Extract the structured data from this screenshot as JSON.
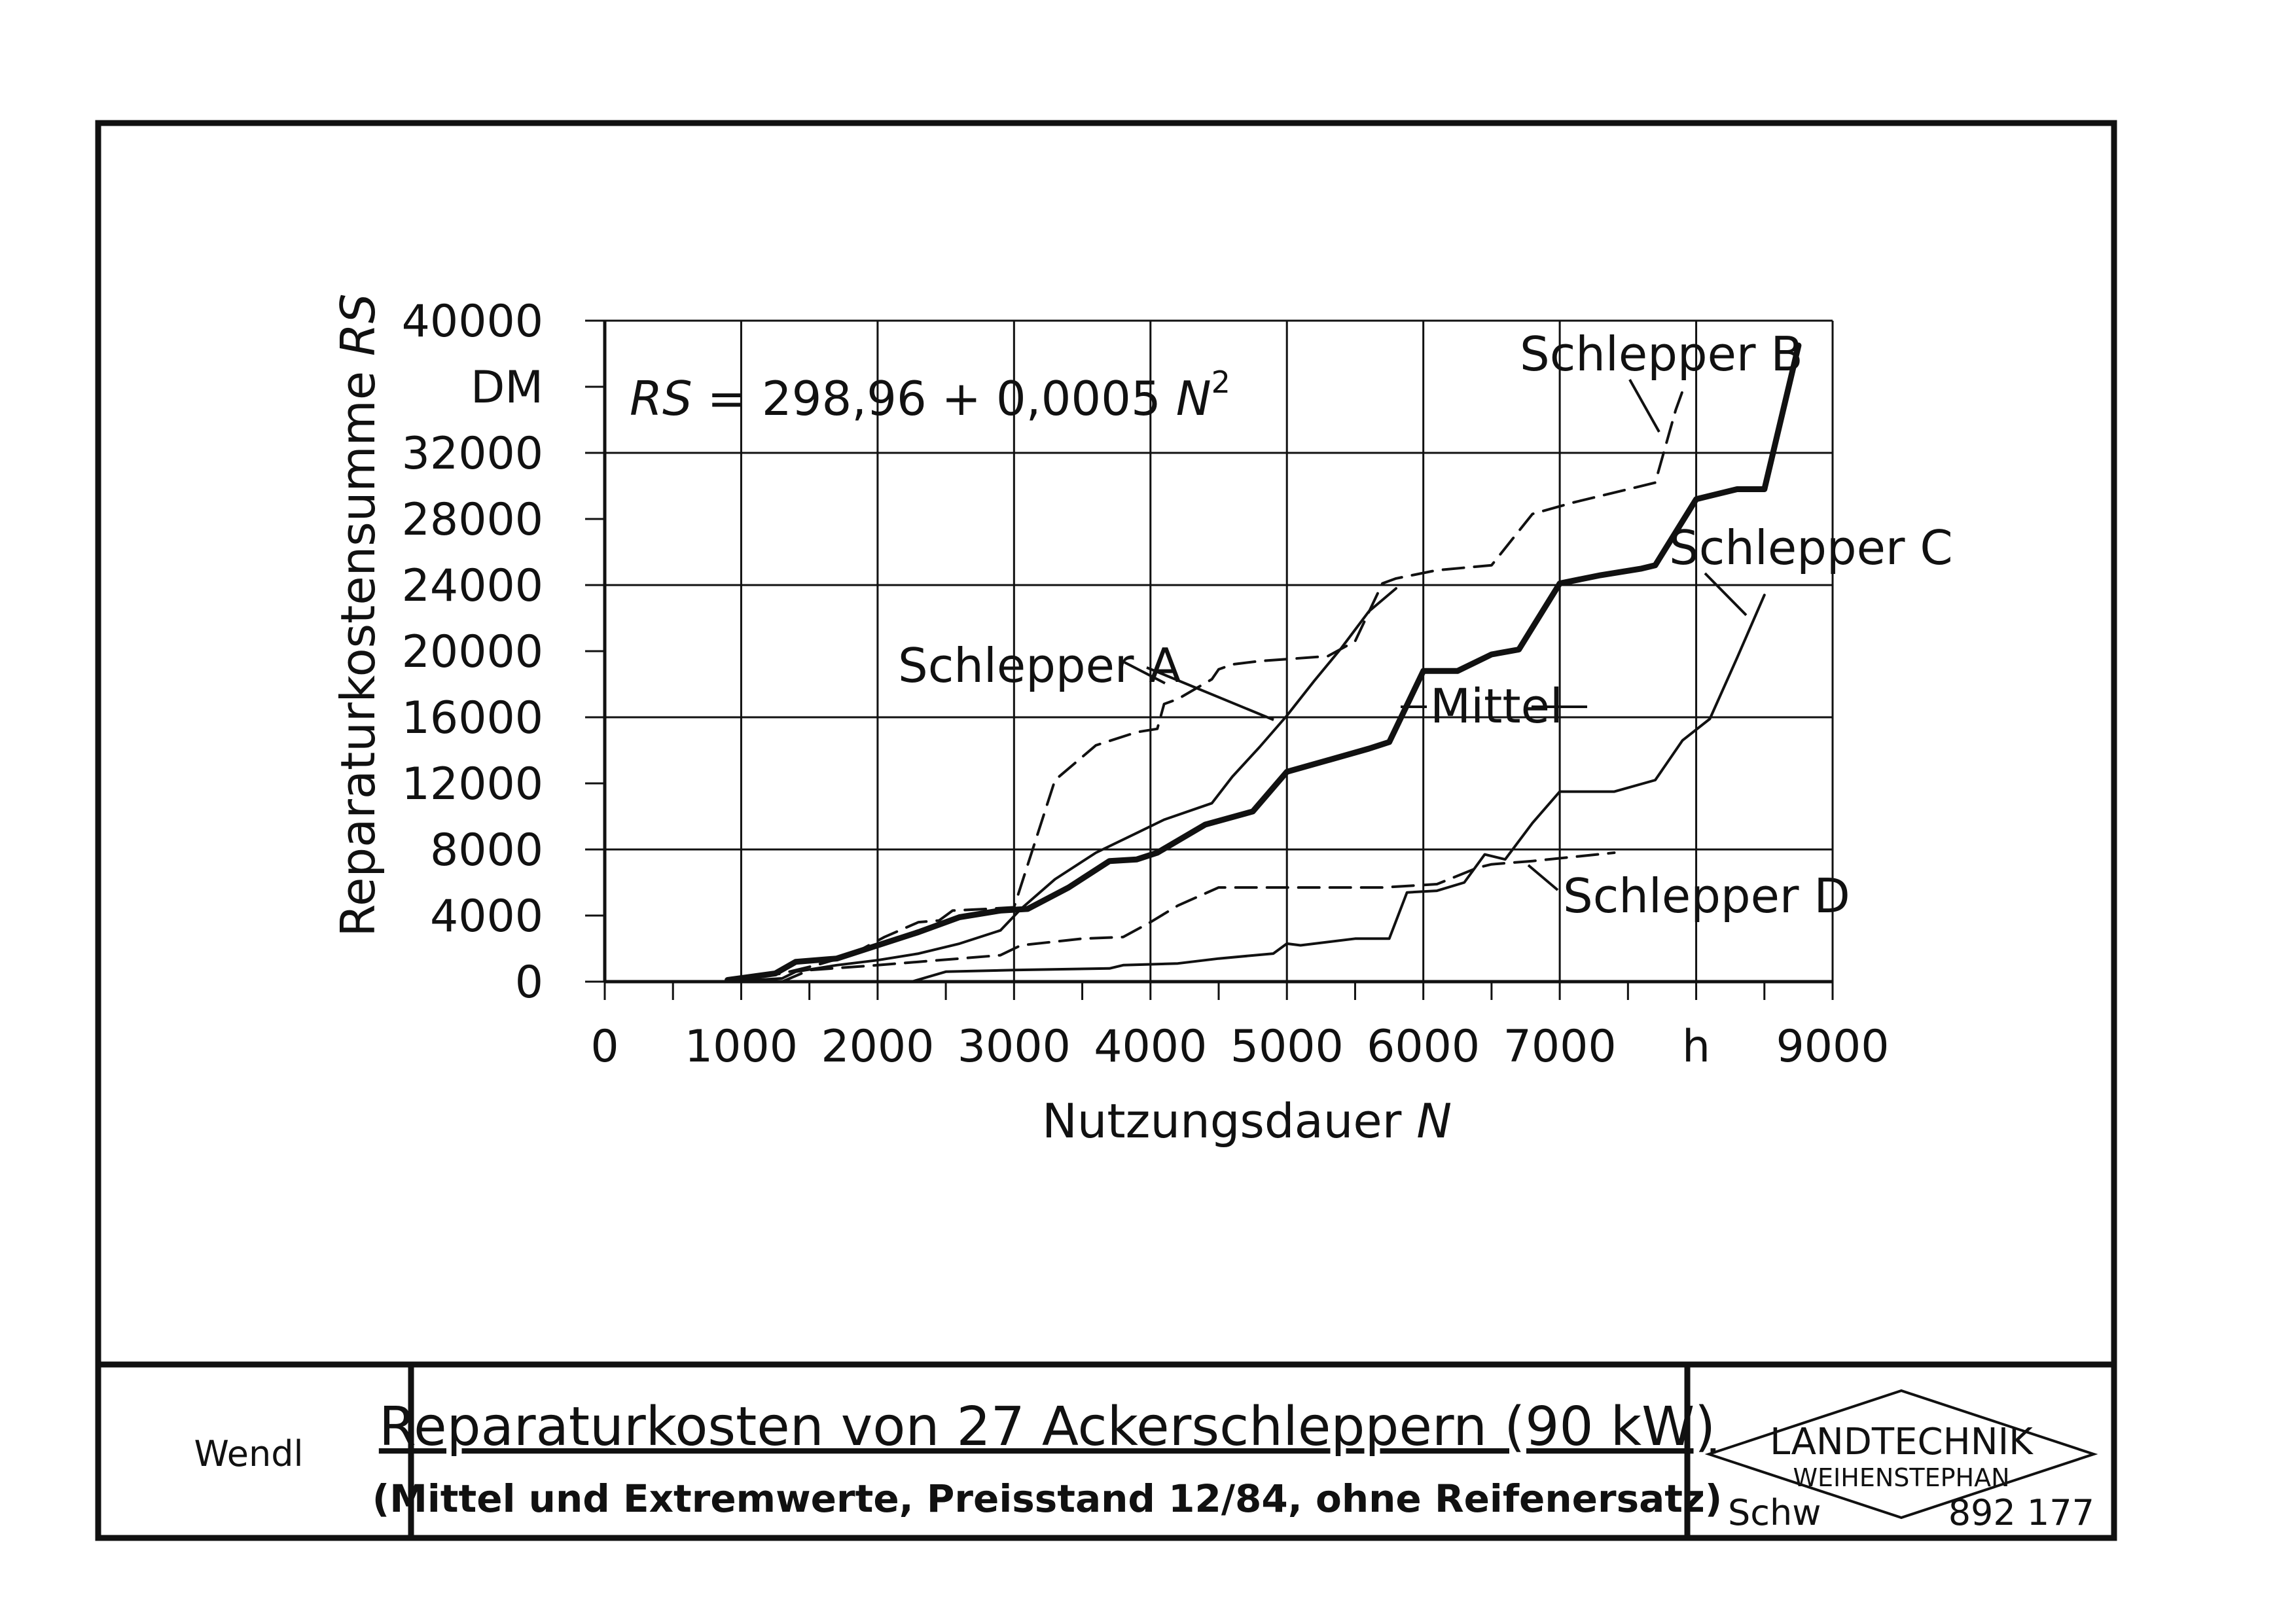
{
  "chart_data": {
    "type": "line",
    "ylabel": "Reparaturkostensumme RS",
    "ylabel_main": "Reparaturkostensumme",
    "ylabel_var": "RS",
    "xlabel": "Nutzungsdauer N",
    "xlabel_main": "Nutzungsdauer",
    "xlabel_var": "N",
    "y_unit": "DM",
    "x_unit": "h",
    "xlim": [
      0,
      9000
    ],
    "ylim": [
      0,
      40000
    ],
    "grid": true,
    "x_ticks": [
      0,
      1000,
      2000,
      3000,
      4000,
      5000,
      6000,
      7000,
      8000,
      9000
    ],
    "x_tick_labels": [
      "0",
      "1000",
      "2000",
      "3000",
      "4000",
      "5000",
      "6000",
      "7000",
      "h",
      "9000"
    ],
    "y_ticks": [
      0,
      4000,
      8000,
      12000,
      16000,
      20000,
      24000,
      28000,
      32000,
      36000,
      40000
    ],
    "y_tick_labels": [
      "0",
      "4000",
      "8000",
      "12000",
      "16000",
      "20000",
      "24000",
      "28000",
      "32000",
      "DM",
      "40000"
    ],
    "formula": {
      "var": "RS",
      "rhs": "= 298,96 + 0,0005",
      "var2": "N",
      "exp": "2"
    },
    "series": [
      {
        "name": "Schlepper B",
        "style": "dashed",
        "x": [
          900,
          1300,
          1550,
          1800,
          2050,
          2300,
          2450,
          2550,
          2800,
          3000,
          3300,
          3600,
          3900,
          4050,
          4100,
          4200,
          4450,
          4500,
          4600,
          4800,
          5300,
          5500,
          5700,
          5800,
          6100,
          6500,
          6800,
          7100,
          7700,
          7850,
          7920
        ],
        "y": [
          0,
          500,
          1000,
          1600,
          2700,
          3600,
          3700,
          4300,
          4400,
          4500,
          12200,
          14300,
          15100,
          15300,
          16800,
          17100,
          18300,
          18900,
          19200,
          19400,
          19700,
          20600,
          24100,
          24400,
          24900,
          25200,
          28300,
          29000,
          30200,
          34600,
          36200
        ]
      },
      {
        "name": "Schlepper A",
        "style": "solid",
        "x": [
          900,
          1300,
          1400,
          1700,
          2000,
          2300,
          2600,
          2900,
          3050,
          3300,
          3600,
          3900,
          4100,
          4450,
          4600,
          4800,
          5000,
          5200,
          5400,
          5600,
          5800
        ],
        "y": [
          0,
          200,
          600,
          1000,
          1300,
          1700,
          2300,
          3100,
          4400,
          6200,
          7800,
          9000,
          9800,
          10800,
          12400,
          14200,
          16100,
          18200,
          20200,
          22400,
          23800
        ]
      },
      {
        "name": "Mittel",
        "style": "bold",
        "x": [
          900,
          1250,
          1400,
          1700,
          2000,
          2300,
          2600,
          2900,
          3100,
          3400,
          3700,
          3900,
          4050,
          4400,
          4750,
          5000,
          5300,
          5600,
          5750,
          6000,
          6250,
          6500,
          6700,
          7000,
          7300,
          7600,
          7700,
          8000,
          8300,
          8500,
          8750
        ],
        "y": [
          100,
          500,
          1200,
          1400,
          2200,
          3000,
          3900,
          4300,
          4400,
          5700,
          7300,
          7400,
          7800,
          9500,
          10300,
          12700,
          13400,
          14100,
          14500,
          18800,
          18800,
          19800,
          20100,
          24100,
          24600,
          25000,
          25200,
          29200,
          29800,
          29800,
          38500
        ]
      },
      {
        "name": "Schlepper D",
        "style": "dashed",
        "x": [
          1300,
          1500,
          2000,
          2300,
          2600,
          2900,
          3050,
          3500,
          3800,
          4000,
          4200,
          4500,
          4800,
          5200,
          5700,
          6100,
          6400,
          6500,
          6800,
          7400
        ],
        "y": [
          0,
          700,
          1000,
          1200,
          1400,
          1600,
          2200,
          2600,
          2700,
          3600,
          4600,
          5700,
          5700,
          5700,
          5700,
          5900,
          6900,
          7100,
          7300,
          7800
        ]
      },
      {
        "name": "Schlepper C",
        "style": "solid",
        "x": [
          2100,
          2250,
          2500,
          3000,
          3700,
          3800,
          4200,
          4500,
          4900,
          5000,
          5100,
          5500,
          5750,
          5880,
          6100,
          6300,
          6450,
          6600,
          6800,
          7000,
          7400,
          7700,
          7900,
          8100,
          8300,
          8500
        ],
        "y": [
          0,
          0,
          600,
          700,
          800,
          1000,
          1100,
          1400,
          1700,
          2300,
          2200,
          2600,
          2600,
          5400,
          5500,
          6000,
          7700,
          7400,
          9600,
          11500,
          11500,
          12200,
          14600,
          15900,
          19600,
          23400
        ]
      }
    ],
    "annotations": [
      "Schlepper A",
      "Schlepper B",
      "Schlepper C",
      "Schlepper D",
      "Mittel"
    ]
  },
  "title_block": {
    "author": "Wendl",
    "title": "Reparaturkosten von 27 Ackerschleppern (90 kW)",
    "subtitle": "(Mittel und Extremwerte, Preisstand 12/84, ohne Reifenersatz)",
    "logo_line1": "LANDTECHNIK",
    "logo_line2": "WEIHENSTEPHAN",
    "drawer": "Schw",
    "number": "892 177"
  }
}
